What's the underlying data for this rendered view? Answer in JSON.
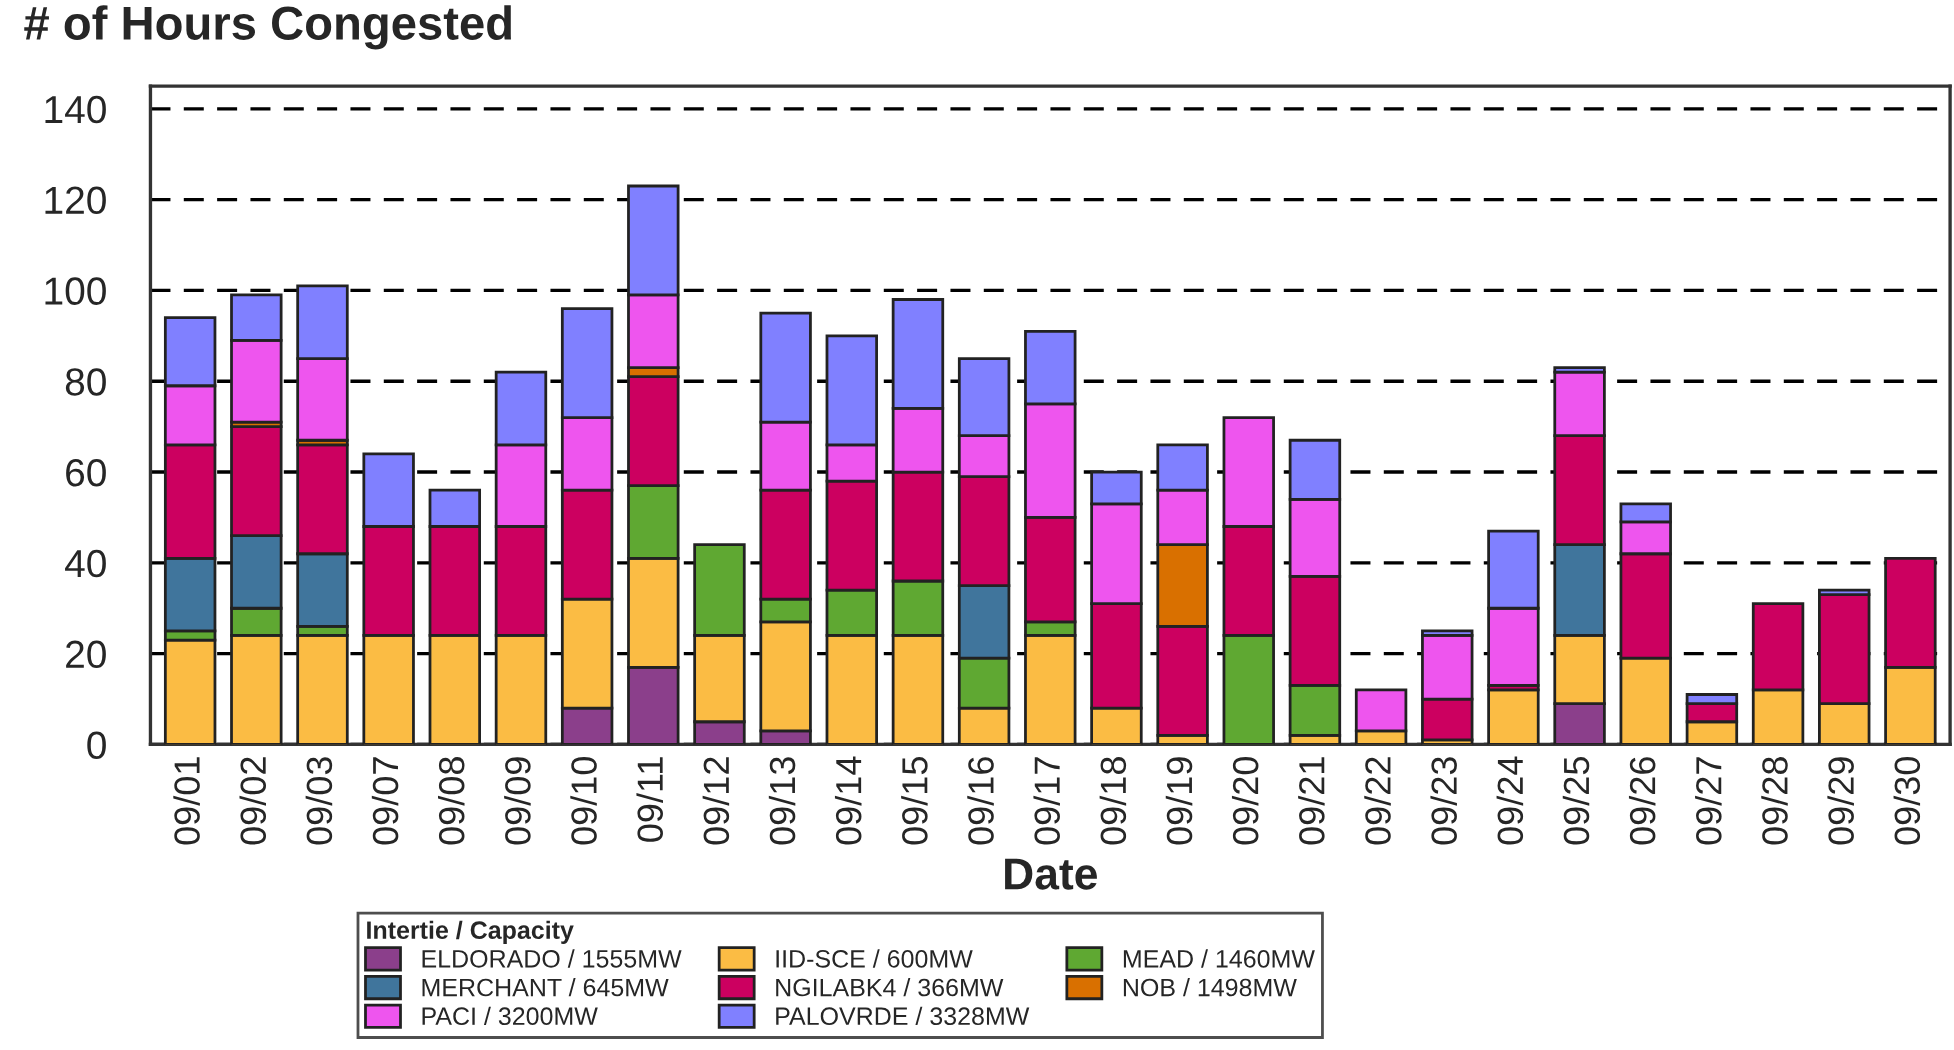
{
  "chart_data": {
    "type": "bar",
    "title": "# of Hours Congested",
    "xlabel": "Date",
    "legend_title": "Intertie / Capacity",
    "stacked": true,
    "categories": [
      "09/01",
      "09/02",
      "09/03",
      "09/07",
      "09/08",
      "09/09",
      "09/10",
      "09/11",
      "09/12",
      "09/13",
      "09/14",
      "09/15",
      "09/16",
      "09/17",
      "09/18",
      "09/19",
      "09/20",
      "09/21",
      "09/22",
      "09/23",
      "09/24",
      "09/25",
      "09/26",
      "09/27",
      "09/28",
      "09/29",
      "09/30"
    ],
    "series": [
      {
        "name": "ELDORADO / 1555MW",
        "color": "#8b3f8b",
        "values": [
          null,
          null,
          null,
          null,
          null,
          null,
          8,
          17,
          5,
          3,
          null,
          null,
          null,
          null,
          null,
          null,
          null,
          null,
          null,
          null,
          null,
          9,
          null,
          null,
          null,
          null,
          null
        ]
      },
      {
        "name": "IID-SCE / 600MW",
        "color": "#fbbc44",
        "values": [
          23,
          24,
          24,
          24,
          24,
          24,
          24,
          24,
          19,
          24,
          24,
          24,
          8,
          24,
          8,
          2,
          null,
          2,
          3,
          1,
          12,
          15,
          19,
          5,
          12,
          9,
          17
        ]
      },
      {
        "name": "MEAD / 1460MW",
        "color": "#5fa832",
        "values": [
          2,
          6,
          2,
          null,
          null,
          null,
          null,
          16,
          20,
          5,
          10,
          12,
          11,
          3,
          null,
          null,
          24,
          11,
          null,
          null,
          null,
          null,
          null,
          null,
          null,
          null,
          null
        ]
      },
      {
        "name": "MERCHANT / 645MW",
        "color": "#40759c",
        "values": [
          16,
          16,
          16,
          null,
          null,
          null,
          null,
          null,
          null,
          null,
          null,
          null,
          16,
          null,
          null,
          null,
          null,
          null,
          null,
          null,
          null,
          20,
          null,
          null,
          null,
          null,
          null
        ]
      },
      {
        "name": "NGILABK4 / 366MW",
        "color": "#cc0060",
        "values": [
          25,
          24,
          24,
          24,
          24,
          24,
          24,
          24,
          null,
          24,
          24,
          24,
          24,
          23,
          23,
          24,
          24,
          24,
          null,
          9,
          1,
          24,
          23,
          4,
          19,
          24,
          24
        ]
      },
      {
        "name": "NOB / 1498MW",
        "color": "#d97000",
        "values": [
          null,
          1,
          1,
          null,
          null,
          null,
          null,
          2,
          null,
          null,
          null,
          null,
          null,
          null,
          null,
          18,
          null,
          null,
          null,
          null,
          null,
          null,
          null,
          null,
          null,
          null,
          null
        ]
      },
      {
        "name": "PACI / 3200MW",
        "color": "#ee55ee",
        "values": [
          13,
          18,
          18,
          null,
          null,
          18,
          16,
          16,
          null,
          15,
          8,
          14,
          9,
          25,
          22,
          12,
          24,
          17,
          9,
          14,
          17,
          14,
          7,
          null,
          null,
          null,
          null
        ]
      },
      {
        "name": "PALOVRDE / 3328MW",
        "color": "#8080ff",
        "values": [
          15,
          10,
          16,
          16,
          8,
          16,
          24,
          24,
          null,
          24,
          24,
          24,
          17,
          16,
          7,
          10,
          null,
          13,
          null,
          1,
          17,
          1,
          4,
          2,
          null,
          1,
          null
        ]
      }
    ],
    "ylim": [
      0,
      145
    ],
    "yticks": [
      0,
      20,
      40,
      60,
      80,
      100,
      120,
      140
    ],
    "grid": "y",
    "legend": "bottom"
  }
}
